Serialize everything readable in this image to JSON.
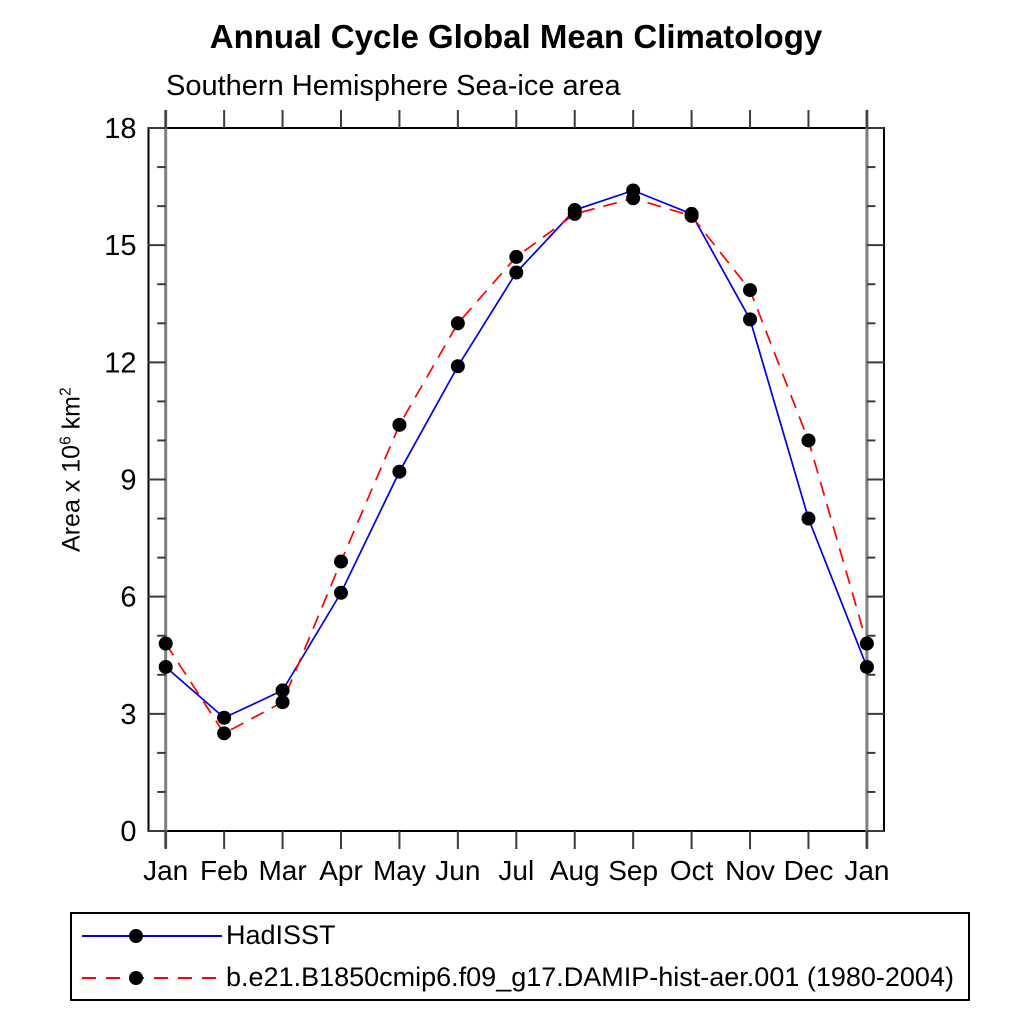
{
  "title": "Annual Cycle Global Mean Climatology",
  "subtitle": "Southern Hemisphere Sea-ice area",
  "ylabel": {
    "prefix": "Area x 10",
    "exp": "6",
    "unit": " km",
    "unit_exp": "2"
  },
  "legend": {
    "items": [
      {
        "label": "HadISST"
      },
      {
        "label": "b.e21.B1850cmip6.f09_g17.DAMIP-hist-aer.001 (1980-2004)"
      }
    ]
  },
  "chart_data": {
    "type": "line",
    "title": "Annual Cycle Global Mean Climatology",
    "subtitle": "Southern Hemisphere Sea-ice area",
    "xlabel": "",
    "ylabel": "Area x 10^6 km^2",
    "categories": [
      "Jan",
      "Feb",
      "Mar",
      "Apr",
      "May",
      "Jun",
      "Jul",
      "Aug",
      "Sep",
      "Oct",
      "Nov",
      "Dec",
      "Jan"
    ],
    "series": [
      {
        "name": "HadISST",
        "color": "#0000ee",
        "line_style": "solid",
        "marker": "filled-black-circle",
        "values": [
          4.2,
          2.9,
          3.6,
          6.1,
          9.2,
          11.9,
          14.3,
          15.9,
          16.4,
          15.8,
          13.1,
          8.0,
          4.2
        ]
      },
      {
        "name": "b.e21.B1850cmip6.f09_g17.DAMIP-hist-aer.001 (1980-2004)",
        "color": "#ff0000",
        "line_style": "dashed",
        "marker": "filled-black-circle",
        "values": [
          4.8,
          2.5,
          3.3,
          6.9,
          10.4,
          13.0,
          14.7,
          15.8,
          16.2,
          15.75,
          13.85,
          10.0,
          4.8
        ]
      }
    ],
    "ylim": [
      0,
      18
    ],
    "yticks": [
      0,
      3,
      6,
      9,
      12,
      15,
      18
    ],
    "y_minor_step": 1,
    "grid": false,
    "legend_position": "bottom-left-box"
  },
  "colors": {
    "frame": "#000000",
    "axis_line": "#7f7f7f",
    "tick": "#3c3c3c",
    "marker": "#000000",
    "hadisst_line": "#0000ee",
    "model_line": "#ff0000"
  }
}
